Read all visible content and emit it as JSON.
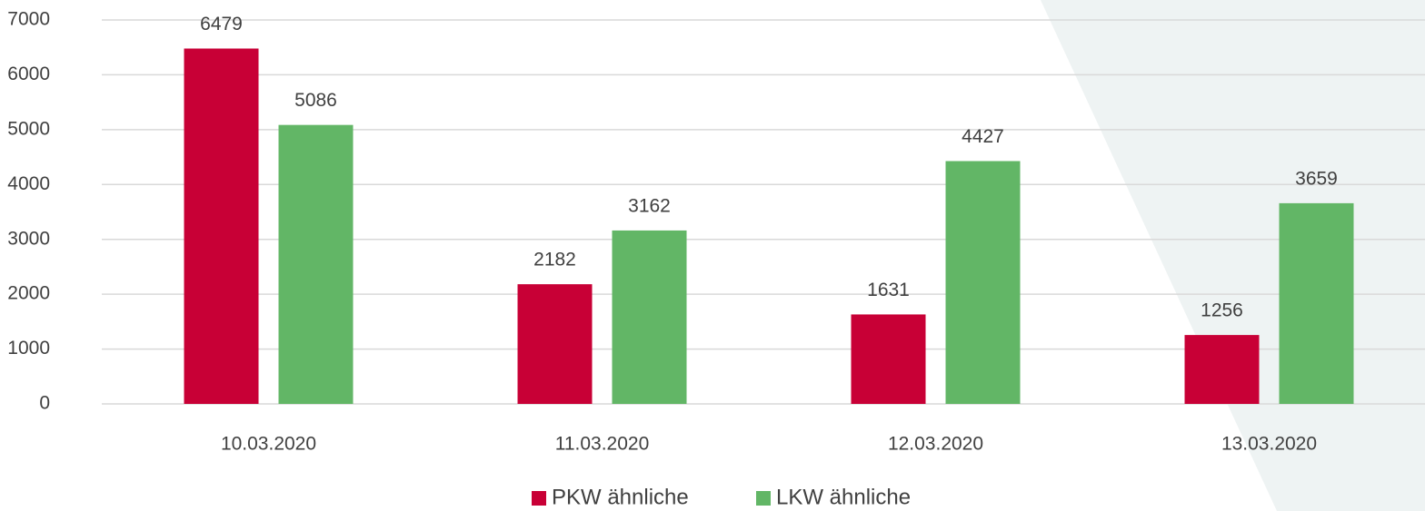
{
  "chart_data": {
    "type": "bar",
    "categories": [
      "10.03.2020",
      "11.03.2020",
      "12.03.2020",
      "13.03.2020"
    ],
    "series": [
      {
        "name": "PKW ähnliche",
        "color": "#c80036",
        "values": [
          6479,
          2182,
          1631,
          1256
        ]
      },
      {
        "name": "LKW ähnliche",
        "color": "#62b666",
        "values": [
          5086,
          3162,
          4427,
          3659
        ]
      }
    ],
    "ylim": [
      0,
      7000
    ],
    "yticks": [
      0,
      1000,
      2000,
      3000,
      4000,
      5000,
      6000,
      7000
    ],
    "grid": true,
    "legend": "bottom"
  }
}
